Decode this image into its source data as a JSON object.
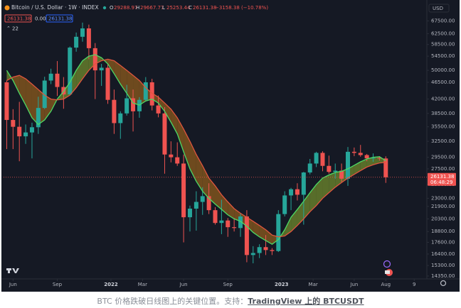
{
  "chart_data": {
    "type": "candlestick",
    "title": "Bitcoin / U.S. Dollar · 1W · INDEX",
    "x": [
      0,
      2,
      4,
      6,
      8,
      10,
      12,
      14,
      16,
      18,
      20,
      22,
      24,
      26,
      28,
      30,
      32,
      34,
      36,
      38,
      40,
      42,
      44,
      46,
      48,
      50,
      52,
      54,
      56,
      58,
      60,
      62,
      64,
      66,
      68,
      70,
      72,
      74,
      76,
      78,
      80,
      82,
      84,
      86,
      88,
      90,
      92,
      94,
      96,
      98,
      100,
      102,
      104,
      106,
      108,
      110,
      112,
      114,
      116,
      118,
      120
    ],
    "open": [
      46500,
      37000,
      35500,
      33500,
      34300,
      35400,
      39800,
      47000,
      49000,
      45200,
      43200,
      57400,
      61300,
      64500,
      57200,
      50000,
      50800,
      41800,
      36300,
      38500,
      42200,
      39000,
      41800,
      46500,
      40400,
      38500,
      30000,
      29500,
      28400,
      20500,
      21600,
      22500,
      23300,
      21400,
      19800,
      20100,
      19300,
      19200,
      20600,
      16300,
      16500,
      17100,
      16800,
      16700,
      20900,
      23400,
      24300,
      23500,
      26900,
      28400,
      30300,
      28000,
      27000,
      27200,
      25900,
      30500,
      30300,
      29900,
      29300,
      29400,
      29288.97
    ],
    "high": [
      47000,
      39500,
      41300,
      36000,
      36400,
      42600,
      48100,
      50500,
      52900,
      48000,
      57800,
      62900,
      66800,
      66000,
      59000,
      52000,
      52000,
      44500,
      39000,
      45800,
      44500,
      42500,
      48000,
      47500,
      42900,
      40000,
      32500,
      32300,
      30000,
      22000,
      24000,
      24600,
      25200,
      21800,
      22800,
      20400,
      20400,
      21000,
      21400,
      17200,
      17400,
      18400,
      17000,
      21400,
      24000,
      24500,
      25200,
      27000,
      29200,
      30500,
      30600,
      29800,
      28400,
      28400,
      31400,
      31300,
      31800,
      30100,
      30200,
      29700,
      29667.77
    ],
    "low": [
      31000,
      31000,
      28800,
      32000,
      29300,
      34000,
      39500,
      46000,
      42800,
      39600,
      43000,
      56000,
      59500,
      53500,
      42000,
      45500,
      40800,
      34000,
      33000,
      38000,
      34500,
      37500,
      41500,
      39200,
      37600,
      26700,
      28600,
      28000,
      17600,
      18800,
      18900,
      20800,
      20900,
      19600,
      18500,
      18200,
      18800,
      18200,
      15600,
      15500,
      16000,
      16300,
      16300,
      16600,
      20600,
      21400,
      22700,
      19600,
      26600,
      27800,
      27100,
      26700,
      25900,
      25400,
      24800,
      29700,
      29600,
      28800,
      28700,
      28900,
      25253.44
    ],
    "close": [
      37000,
      35500,
      33500,
      34300,
      35400,
      39800,
      47000,
      49000,
      45200,
      43200,
      57400,
      61300,
      64500,
      57200,
      50000,
      50800,
      41800,
      36300,
      38500,
      42200,
      39000,
      41800,
      46500,
      40400,
      38500,
      30000,
      29500,
      28400,
      20500,
      21600,
      22500,
      23300,
      21400,
      19800,
      20100,
      19300,
      19200,
      20600,
      16300,
      16500,
      17100,
      16800,
      16700,
      20900,
      23400,
      24300,
      23500,
      26900,
      28400,
      30300,
      28000,
      27000,
      27200,
      25900,
      30500,
      30300,
      29900,
      29300,
      29400,
      29300,
      26131.38
    ],
    "up_color": "#26a69a",
    "down_color": "#ef5350",
    "lines": [
      {
        "color": "#4cd964",
        "values": [
          50000,
          47000,
          43500,
          40500,
          37500,
          36000,
          37000,
          39000,
          42000,
          44000,
          46500,
          50000,
          53000,
          54500,
          55000,
          54000,
          52000,
          49000,
          46000,
          43500,
          41000,
          40500,
          41500,
          42000,
          41000,
          39000,
          36500,
          34000,
          30500,
          27500,
          25500,
          24000,
          23000,
          22200,
          21500,
          20800,
          20300,
          20000,
          19400,
          18700,
          18200,
          17800,
          17400,
          17900,
          19000,
          20500,
          21500,
          22600,
          23800,
          25000,
          26000,
          26500,
          26900,
          27100,
          27500,
          28100,
          28700,
          29200,
          29500,
          29600,
          28900
        ]
      },
      {
        "color": "#e0563f",
        "values": [
          47000,
          48000,
          48500,
          47500,
          46000,
          44500,
          43000,
          42000,
          41800,
          42000,
          43000,
          45000,
          47500,
          50000,
          52000,
          53000,
          53500,
          53000,
          51500,
          50000,
          48500,
          47000,
          45000,
          43500,
          42500,
          41000,
          39500,
          37500,
          35000,
          32500,
          30000,
          28000,
          26000,
          24800,
          23500,
          22500,
          21600,
          21000,
          20500,
          20000,
          19500,
          19000,
          18400,
          18200,
          18300,
          18800,
          19500,
          20300,
          21200,
          22000,
          23000,
          23800,
          24600,
          25300,
          26000,
          26600,
          27200,
          27800,
          28200,
          28500,
          28600
        ]
      }
    ],
    "band_colors": [
      "#6f8a2c",
      "#8c5b1c"
    ],
    "xlim": [
      -1,
      133
    ],
    "xticks": [
      {
        "value": 2,
        "label": "Jun"
      },
      {
        "value": 16,
        "label": "Sep"
      },
      {
        "value": 33,
        "label": "2022"
      },
      {
        "value": 43,
        "label": "Mar"
      },
      {
        "value": 56,
        "label": "Jun"
      },
      {
        "value": 70,
        "label": "Sep"
      },
      {
        "value": 87,
        "label": "2023"
      },
      {
        "value": 97,
        "label": "Mar"
      },
      {
        "value": 110,
        "label": "Jun"
      },
      {
        "value": 120,
        "label": "Aug"
      },
      {
        "value": 129,
        "label": "9"
      }
    ],
    "ylim": [
      14100,
      75000
    ],
    "log_scale": true,
    "grid": false,
    "yticks": [
      {
        "value": 67500,
        "label": "67500.00"
      },
      {
        "value": 62500,
        "label": "62500.00"
      },
      {
        "value": 58500,
        "label": "58500.00"
      },
      {
        "value": 54500,
        "label": "54500.00"
      },
      {
        "value": 50000,
        "label": "50000.00"
      },
      {
        "value": 46500,
        "label": "46500.00"
      },
      {
        "value": 42000,
        "label": "42000.00"
      },
      {
        "value": 38500,
        "label": "38500.00"
      },
      {
        "value": 35500,
        "label": "35500.00"
      },
      {
        "value": 32500,
        "label": "32500.00"
      },
      {
        "value": 29500,
        "label": "29500.00"
      },
      {
        "value": 27500,
        "label": "27500.00"
      },
      {
        "value": 25000,
        "label": "25000.00"
      },
      {
        "value": 23000,
        "label": "23000.00"
      },
      {
        "value": 21900,
        "label": "21900.00"
      },
      {
        "value": 20300,
        "label": "20300.00"
      },
      {
        "value": 18800,
        "label": "18800.00"
      },
      {
        "value": 17600,
        "label": "17600.00"
      },
      {
        "value": 16400,
        "label": "16400.00"
      },
      {
        "value": 15300,
        "label": "15300.00"
      },
      {
        "value": 14350,
        "label": "14350.00"
      }
    ],
    "currency": "USD",
    "ohlc_letters": [
      "O",
      "H",
      "L",
      "C"
    ],
    "change": "−3158.38 (−10.78%)",
    "indicator_middle": "0.00",
    "indicator_count": "22",
    "countdown": "06:48:29"
  },
  "caption": {
    "text": "BTC 价格跌破日线图上的关键位置。支持：",
    "link": "TradingView 上的 BTCUSDT"
  }
}
